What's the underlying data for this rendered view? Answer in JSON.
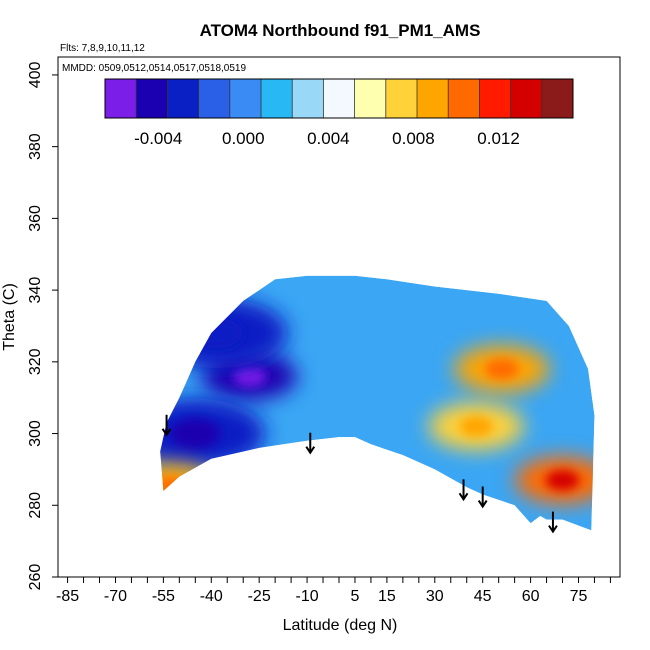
{
  "chart_data": {
    "type": "heatmap",
    "title": "ATOM4 Northbound f91_PM1_AMS",
    "flights_note": "Flts: 7,8,9,10,11,12",
    "dates_note": "MMDD: 0509,0512,0514,0517,0518,0519",
    "xlabel": "Latitude (deg N)",
    "ylabel": "Theta (C)",
    "xlim": [
      -88,
      88
    ],
    "ylim": [
      260,
      405
    ],
    "xticks": [
      -85,
      -70,
      -55,
      -40,
      -25,
      -10,
      5,
      15,
      30,
      45,
      60,
      75
    ],
    "yticks": [
      260,
      280,
      300,
      320,
      340,
      360,
      380,
      400
    ],
    "colorbar": {
      "min": -0.0065,
      "max": 0.0155,
      "ticks": [
        -0.004,
        0.0,
        0.004,
        0.008,
        0.012
      ],
      "tick_labels": [
        "-0.004",
        "0.000",
        "0.004",
        "0.008",
        "0.012"
      ],
      "colors": [
        "#7a1ee8",
        "#1a00b0",
        "#0a1fc4",
        "#2a5fe8",
        "#3a8cf4",
        "#28b8f4",
        "#9ad8f8",
        "#f4f8ff",
        "#ffffb0",
        "#ffd23a",
        "#ffa500",
        "#ff6a00",
        "#ff1a00",
        "#d40000",
        "#8b1a1a"
      ]
    },
    "outline": [
      [
        -55,
        284
      ],
      [
        -50,
        288
      ],
      [
        -40,
        293
      ],
      [
        -25,
        296
      ],
      [
        -10,
        298
      ],
      [
        0,
        299
      ],
      [
        5,
        299
      ],
      [
        10,
        297
      ],
      [
        20,
        294
      ],
      [
        30,
        290
      ],
      [
        40,
        285
      ],
      [
        45,
        283
      ],
      [
        55,
        280
      ],
      [
        60,
        275
      ],
      [
        63,
        277
      ],
      [
        65,
        276
      ],
      [
        70,
        276
      ],
      [
        79,
        273
      ],
      [
        80,
        305
      ],
      [
        78,
        318
      ],
      [
        72,
        330
      ],
      [
        65,
        337
      ],
      [
        50,
        339
      ],
      [
        30,
        341
      ],
      [
        15,
        343
      ],
      [
        5,
        344
      ],
      [
        -10,
        344
      ],
      [
        -20,
        343
      ],
      [
        -30,
        337
      ],
      [
        -40,
        328
      ],
      [
        -45,
        320
      ],
      [
        -50,
        310
      ],
      [
        -54,
        303
      ],
      [
        -56,
        295
      ]
    ],
    "field_patches": [
      {
        "name": "deep-minimum",
        "lat": -28,
        "theta": 316,
        "value": -0.005
      },
      {
        "name": "upper-left-negative",
        "lat": -38,
        "theta": 328,
        "value": -0.003
      },
      {
        "name": "left-lower-negative",
        "lat": -45,
        "theta": 300,
        "value": -0.0035
      },
      {
        "name": "lower-edge-positive",
        "lat": -53,
        "theta": 285,
        "value": 0.009
      },
      {
        "name": "mid-43N-positive",
        "lat": 43,
        "theta": 302,
        "value": 0.008
      },
      {
        "name": "mid-51N-positive",
        "lat": 51,
        "theta": 318,
        "value": 0.009
      },
      {
        "name": "north-edge-positive",
        "lat": 70,
        "theta": 287,
        "value": 0.011
      }
    ],
    "arrows": [
      -54,
      -9,
      39,
      45,
      67
    ]
  }
}
